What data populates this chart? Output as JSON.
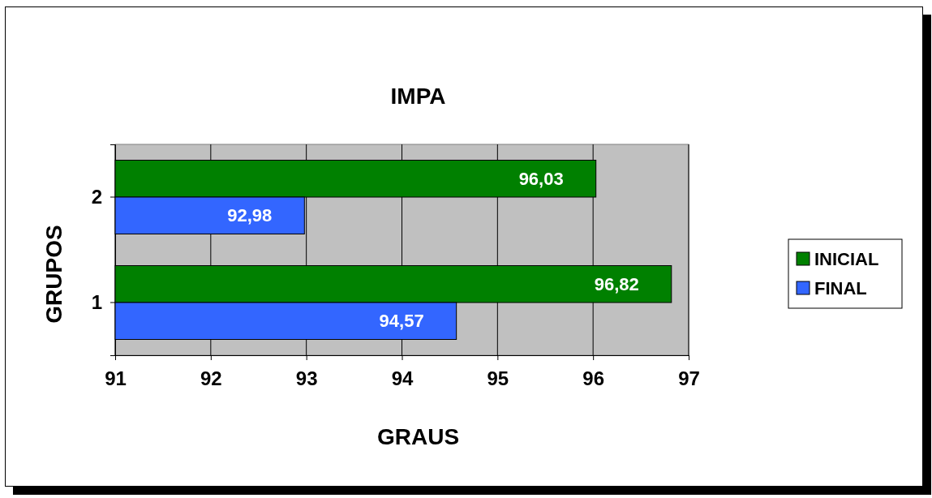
{
  "chart_data": {
    "type": "bar",
    "orientation": "horizontal",
    "title": "IMPA",
    "xlabel": "GRAUS",
    "ylabel": "GRUPOS",
    "categories": [
      "2",
      "1"
    ],
    "series": [
      {
        "name": "INICIAL",
        "color": "#008000",
        "values": [
          96.03,
          96.82
        ],
        "value_labels": [
          "96,03",
          "96,82"
        ]
      },
      {
        "name": "FINAL",
        "color": "#3366ff",
        "values": [
          92.98,
          94.57
        ],
        "value_labels": [
          "92,98",
          "94,57"
        ]
      }
    ],
    "xlim": [
      91,
      97
    ],
    "xticks": [
      91,
      92,
      93,
      94,
      95,
      96,
      97
    ],
    "grid": "x",
    "legend": "right"
  }
}
